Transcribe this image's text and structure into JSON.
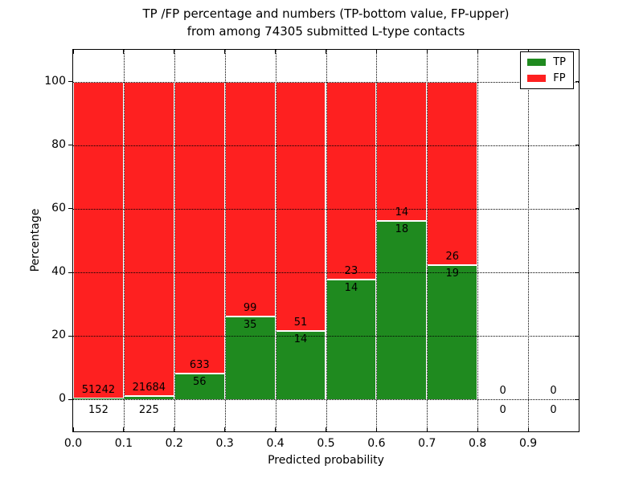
{
  "title": {
    "line1": "TP /FP percentage and numbers (TP-bottom value, FP-upper)",
    "line2": "from among 74305 submitted L-type contacts"
  },
  "colors": {
    "tp": "#1f8a1f",
    "fp": "#fe2020",
    "grid": "#000000",
    "background": "#ffffff"
  },
  "chart_data": {
    "type": "bar",
    "stacked": true,
    "title": "TP /FP percentage and numbers (TP-bottom value, FP-upper) from among 74305 submitted L-type contacts",
    "xlabel": "Predicted probability",
    "ylabel": "Percentage",
    "xlim": [
      0.0,
      1.0
    ],
    "ylim": [
      -10,
      110
    ],
    "grid": "dotted",
    "x_ticks": [
      "0.0",
      "0.1",
      "0.2",
      "0.3",
      "0.4",
      "0.5",
      "0.6",
      "0.7",
      "0.8",
      "0.9"
    ],
    "x_tick_values": [
      0.0,
      0.1,
      0.2,
      0.3,
      0.4,
      0.5,
      0.6,
      0.7,
      0.8,
      0.9
    ],
    "y_ticks": [
      "0",
      "20",
      "40",
      "60",
      "80",
      "100"
    ],
    "y_tick_values": [
      0,
      20,
      40,
      60,
      80,
      100
    ],
    "total_submitted": 74305,
    "legend": {
      "position": "upper right",
      "entries": [
        {
          "label": "TP",
          "color": "#1f8a1f"
        },
        {
          "label": "FP",
          "color": "#fe2020"
        }
      ]
    },
    "bins": [
      {
        "range": [
          0.0,
          0.1
        ],
        "tp_count": 152,
        "fp_count": 51242,
        "tp_pct": 0.3,
        "fp_pct": 99.7
      },
      {
        "range": [
          0.1,
          0.2
        ],
        "tp_count": 225,
        "fp_count": 21684,
        "tp_pct": 1.0,
        "fp_pct": 99.0
      },
      {
        "range": [
          0.2,
          0.3
        ],
        "tp_count": 56,
        "fp_count": 633,
        "tp_pct": 8.1,
        "fp_pct": 91.9
      },
      {
        "range": [
          0.3,
          0.4
        ],
        "tp_count": 35,
        "fp_count": 99,
        "tp_pct": 26.1,
        "fp_pct": 73.9
      },
      {
        "range": [
          0.4,
          0.5
        ],
        "tp_count": 14,
        "fp_count": 51,
        "tp_pct": 21.5,
        "fp_pct": 78.5
      },
      {
        "range": [
          0.5,
          0.6
        ],
        "tp_count": 14,
        "fp_count": 23,
        "tp_pct": 37.8,
        "fp_pct": 62.2
      },
      {
        "range": [
          0.6,
          0.7
        ],
        "tp_count": 18,
        "fp_count": 14,
        "tp_pct": 56.2,
        "fp_pct": 43.8
      },
      {
        "range": [
          0.7,
          0.8
        ],
        "tp_count": 19,
        "fp_count": 26,
        "tp_pct": 42.2,
        "fp_pct": 57.8
      },
      {
        "range": [
          0.8,
          0.9
        ],
        "tp_count": 0,
        "fp_count": 0,
        "tp_pct": 0,
        "fp_pct": 0
      },
      {
        "range": [
          0.9,
          1.0
        ],
        "tp_count": 0,
        "fp_count": 0,
        "tp_pct": 0,
        "fp_pct": 0
      }
    ]
  }
}
